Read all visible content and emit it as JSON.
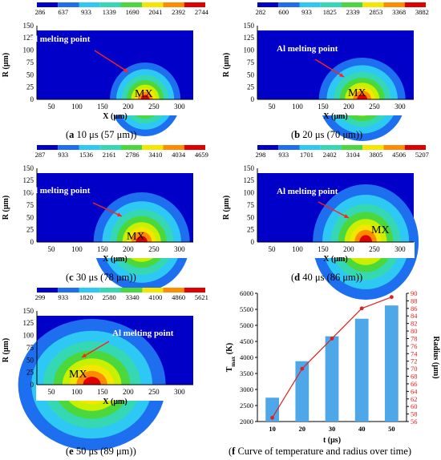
{
  "palette": [
    "#0000c8",
    "#1e6ef0",
    "#2ec8f5",
    "#36d8b4",
    "#4bd83c",
    "#c8f000",
    "#f5e600",
    "#ff8c00",
    "#e00000"
  ],
  "panels": [
    {
      "caption_letter": "a",
      "caption_rest": " 10 μs (57 μm)",
      "ticks": [
        "286",
        "637",
        "933",
        "1339",
        "1690",
        "2041",
        "2392",
        "2744"
      ]
    },
    {
      "caption_letter": "b",
      "caption_rest": " 20 μs (70 μm)",
      "ticks": [
        "282",
        "600",
        "933",
        "1825",
        "2339",
        "2853",
        "3368",
        "3882"
      ]
    },
    {
      "caption_letter": "c",
      "caption_rest": " 30 μs (78 μm)",
      "ticks": [
        "287",
        "933",
        "1536",
        "2161",
        "2786",
        "3410",
        "4034",
        "4659"
      ]
    },
    {
      "caption_letter": "d",
      "caption_rest": " 40 μs (86 μm)",
      "ticks": [
        "298",
        "933",
        "1701",
        "2402",
        "3104",
        "3805",
        "4506",
        "5207"
      ]
    },
    {
      "caption_letter": "e",
      "caption_rest": " 50 μs (89 μm)",
      "ticks": [
        "299",
        "933",
        "1820",
        "2580",
        "3340",
        "4100",
        "4860",
        "5621"
      ]
    }
  ],
  "axes": {
    "xlabel": "X (μm)",
    "ylabel": "R (μm)",
    "xticks": [
      "50",
      "100",
      "150",
      "200",
      "250",
      "300"
    ],
    "yticks": [
      "0",
      "25",
      "50",
      "75",
      "100",
      "125",
      "150"
    ]
  },
  "annotation": "Al melting point",
  "mx_label": "MX",
  "chart_data": {
    "type": "bar",
    "caption_letter": "f",
    "caption_rest": " Curve of temperature and radius over time",
    "categories": [
      "10",
      "20",
      "30",
      "40",
      "50"
    ],
    "series": [
      {
        "name": "T_max",
        "values": [
          2744,
          3882,
          4659,
          5207,
          5621
        ],
        "color": "#4ea7e8"
      },
      {
        "name": "Radius",
        "values": [
          57,
          70,
          78,
          86,
          89
        ],
        "color": "#e0201b"
      }
    ],
    "xlabel": "t (μs)",
    "ylabel_main": "T",
    "ylabel_sub": "max",
    "ylabel_unit": " (K)",
    "y2label": "Radius (μm)",
    "ylim": [
      2000,
      6000
    ],
    "y2lim": [
      56,
      90
    ],
    "yticks": [
      "2000",
      "2500",
      "3000",
      "3500",
      "4000",
      "4500",
      "5000",
      "5500",
      "6000"
    ],
    "y2ticks": [
      "56",
      "58",
      "60",
      "62",
      "64",
      "66",
      "68",
      "70",
      "72",
      "74",
      "76",
      "78",
      "80",
      "82",
      "84",
      "86",
      "88",
      "90"
    ]
  }
}
